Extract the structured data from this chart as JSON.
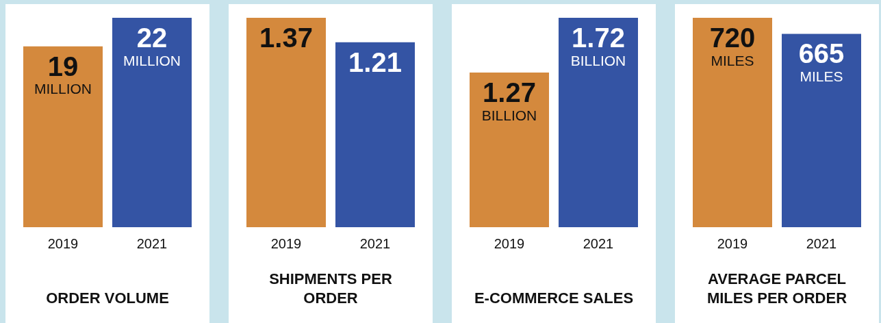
{
  "chart_data": [
    {
      "type": "bar",
      "title": "ORDER VOLUME",
      "categories": [
        "2019",
        "2021"
      ],
      "values": [
        19,
        22
      ],
      "colors": [
        "#d4893d",
        "#3454a4"
      ],
      "value_labels": [
        "19 MILLION",
        "22 MILLION"
      ]
    },
    {
      "type": "bar",
      "title": "SHIPMENTS PER ORDER",
      "categories": [
        "2019",
        "2021"
      ],
      "values": [
        1.37,
        1.21
      ],
      "colors": [
        "#d4893d",
        "#3454a4"
      ],
      "value_labels": [
        "1.37",
        "1.21"
      ]
    },
    {
      "type": "bar",
      "title": "E-COMMERCE SALES",
      "categories": [
        "2019",
        "2021"
      ],
      "values": [
        1.27,
        1.72
      ],
      "colors": [
        "#d4893d",
        "#3454a4"
      ],
      "value_labels": [
        "1.27 BILLION",
        "1.72 BILLION"
      ]
    },
    {
      "type": "bar",
      "title": "AVERAGE PARCEL MILES PER ORDER",
      "categories": [
        "2019",
        "2021"
      ],
      "values": [
        720,
        665
      ],
      "colors": [
        "#d4893d",
        "#3454a4"
      ],
      "value_labels": [
        "720 MILES",
        "665 MILES"
      ]
    }
  ]
}
